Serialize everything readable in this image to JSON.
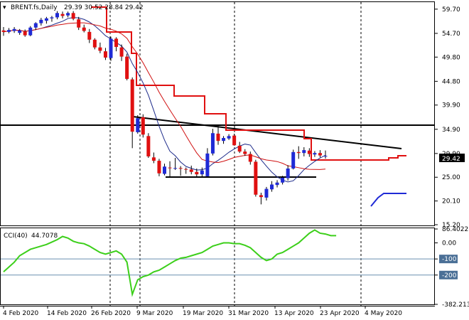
{
  "chart_data": [
    {
      "type": "candlestick",
      "title": "BRENT.fs,Daily",
      "ohlc_text": "29.39 30.52 28.84 29.42",
      "ylim": [
        15.2,
        61.0
      ],
      "y_ticks": [
        "59.70",
        "54.70",
        "49.80",
        "44.80",
        "39.90",
        "34.90",
        "29.90",
        "25.00",
        "20.10",
        "15.20"
      ],
      "last_price": "29.42",
      "x_tick_labels": [
        "4 Feb 2020",
        "14 Feb 2020",
        "26 Feb 2020",
        "9 Mar 2020",
        "19 Mar 2020",
        "31 Mar 2020",
        "13 Apr 2020",
        "23 Apr 2020",
        "4 May 2020"
      ],
      "grid": "vertical dotted separators",
      "colors": {
        "up": "#1f2ad6",
        "down": "#e01010",
        "trailing_stop": "#e01010",
        "ma_slow": "#1c2a8a",
        "ma_fast": "#d01010",
        "trendline": "#000000"
      },
      "candles": [
        [
          55.3,
          56.0,
          54.2,
          55.0
        ],
        [
          55.0,
          55.8,
          54.7,
          55.4
        ],
        [
          55.2,
          56.0,
          54.8,
          55.6
        ],
        [
          54.8,
          55.6,
          54.4,
          55.3
        ],
        [
          55.1,
          55.5,
          54.0,
          54.3
        ],
        [
          54.3,
          56.2,
          54.1,
          55.9
        ],
        [
          55.9,
          57.0,
          55.4,
          56.8
        ],
        [
          56.8,
          57.9,
          56.3,
          57.5
        ],
        [
          57.3,
          58.1,
          56.7,
          57.8
        ],
        [
          57.8,
          58.3,
          57.1,
          58.0
        ],
        [
          58.0,
          59.3,
          57.6,
          58.9
        ],
        [
          58.7,
          59.2,
          57.8,
          58.3
        ],
        [
          58.4,
          59.2,
          58.0,
          58.9
        ],
        [
          58.9,
          59.3,
          57.4,
          57.7
        ],
        [
          57.6,
          58.1,
          55.4,
          55.9
        ],
        [
          55.9,
          56.5,
          54.9,
          55.2
        ],
        [
          55.0,
          55.6,
          52.7,
          53.4
        ],
        [
          53.4,
          53.7,
          51.4,
          51.8
        ],
        [
          51.8,
          52.8,
          50.6,
          51.1
        ],
        [
          51.0,
          51.7,
          49.2,
          49.7
        ],
        [
          49.6,
          54.0,
          49.0,
          53.6
        ],
        [
          53.6,
          53.9,
          51.0,
          51.9
        ],
        [
          51.8,
          52.4,
          49.0,
          49.9
        ],
        [
          49.9,
          50.5,
          45.0,
          45.3
        ],
        [
          45.2,
          45.6,
          31.0,
          34.4
        ],
        [
          34.3,
          37.8,
          34.0,
          37.2
        ],
        [
          37.4,
          38.0,
          33.2,
          33.8
        ],
        [
          33.5,
          34.1,
          29.0,
          29.3
        ],
        [
          29.1,
          30.1,
          27.9,
          28.4
        ],
        [
          28.4,
          28.8,
          25.2,
          25.8
        ],
        [
          25.7,
          27.8,
          25.4,
          27.2
        ],
        [
          27.0,
          28.3,
          25.1,
          26.9
        ],
        [
          26.9,
          29.0,
          26.5,
          26.9
        ],
        [
          26.9,
          27.3,
          25.3,
          26.8
        ],
        [
          26.7,
          27.0,
          25.7,
          26.6
        ],
        [
          26.6,
          27.4,
          25.6,
          26.1
        ],
        [
          26.1,
          26.8,
          24.9,
          25.6
        ],
        [
          25.6,
          27.0,
          25.0,
          26.4
        ],
        [
          25.2,
          31.0,
          25.0,
          29.9
        ],
        [
          29.9,
          35.0,
          29.5,
          34.1
        ],
        [
          34.0,
          35.7,
          31.7,
          32.5
        ],
        [
          32.5,
          33.5,
          31.9,
          33.1
        ],
        [
          33.0,
          33.9,
          32.7,
          33.5
        ],
        [
          33.6,
          34.0,
          31.5,
          31.6
        ],
        [
          31.5,
          32.3,
          30.0,
          30.3
        ],
        [
          30.3,
          30.8,
          29.4,
          29.8
        ],
        [
          29.8,
          30.3,
          27.6,
          28.2
        ],
        [
          28.2,
          28.6,
          21.0,
          21.4
        ],
        [
          21.3,
          21.8,
          19.4,
          20.9
        ],
        [
          20.8,
          23.0,
          20.2,
          22.6
        ],
        [
          22.5,
          24.2,
          22.0,
          23.5
        ],
        [
          23.4,
          24.4,
          22.9,
          23.9
        ],
        [
          23.9,
          25.3,
          23.5,
          24.9
        ],
        [
          24.8,
          27.5,
          24.3,
          26.8
        ],
        [
          26.8,
          30.7,
          26.6,
          30.2
        ],
        [
          30.2,
          31.4,
          28.8,
          30.0
        ],
        [
          30.0,
          31.2,
          29.3,
          30.6
        ],
        [
          30.5,
          31.0,
          29.2,
          29.8
        ],
        [
          29.7,
          30.4,
          29.2,
          30.0
        ],
        [
          30.0,
          30.6,
          29.1,
          29.5
        ],
        [
          29.39,
          30.52,
          28.84,
          29.42
        ]
      ]
    },
    {
      "type": "line",
      "title": "CCI(40)",
      "value_text": "44.7078",
      "ylim": [
        -382.213,
        86.4022
      ],
      "y_ticks": [
        "86.4022",
        "0.00",
        "-100",
        "-200",
        "-382.213"
      ],
      "levels": [
        -100,
        -200
      ],
      "series": [
        {
          "values": [
            -180,
            -150,
            -120,
            -80,
            -60,
            -40,
            -30,
            -20,
            -10,
            5,
            20,
            40,
            30,
            10,
            0,
            -5,
            -20,
            -40,
            -60,
            -70,
            -60,
            -50,
            -70,
            -120,
            -320,
            -230,
            -210,
            -200,
            -180,
            -170,
            -150,
            -130,
            -110,
            -95,
            -90,
            -80,
            -70,
            -60,
            -40,
            -20,
            -10,
            0,
            0,
            -5,
            -5,
            -15,
            -30,
            -60,
            -90,
            -110,
            -100,
            -70,
            -60,
            -40,
            -20,
            0,
            30,
            60,
            80,
            60,
            55,
            45,
            44.7
          ]
        }
      ]
    }
  ]
}
